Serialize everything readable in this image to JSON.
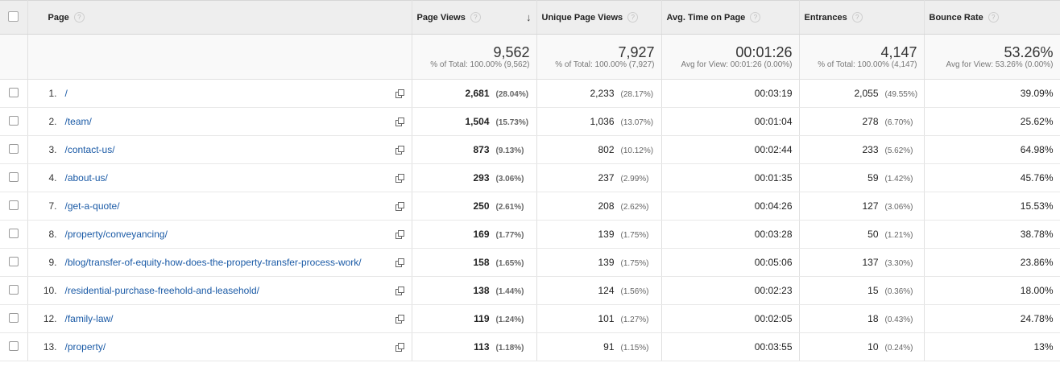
{
  "columns": {
    "page": "Page",
    "page_views": "Page Views",
    "unique_page_views": "Unique Page Views",
    "avg_time": "Avg. Time on Page",
    "entrances": "Entrances",
    "bounce_rate": "Bounce Rate",
    "help": "?",
    "sort_arrow": "↓"
  },
  "totals": {
    "page_views": "9,562",
    "page_views_sub": "% of Total: 100.00% (9,562)",
    "unique_page_views": "7,927",
    "unique_page_views_sub": "% of Total: 100.00% (7,927)",
    "avg_time": "00:01:26",
    "avg_time_sub": "Avg for View: 00:01:26 (0.00%)",
    "entrances": "4,147",
    "entrances_sub": "% of Total: 100.00% (4,147)",
    "bounce_rate": "53.26%",
    "bounce_rate_sub": "Avg for View: 53.26% (0.00%)"
  },
  "rows": [
    {
      "idx": "1.",
      "path": "/",
      "pv": "2,681",
      "pv_pct": "(28.04%)",
      "upv": "2,233",
      "upv_pct": "(28.17%)",
      "time": "00:03:19",
      "ent": "2,055",
      "ent_pct": "(49.55%)",
      "bounce": "39.09%"
    },
    {
      "idx": "2.",
      "path": "/team/",
      "pv": "1,504",
      "pv_pct": "(15.73%)",
      "upv": "1,036",
      "upv_pct": "(13.07%)",
      "time": "00:01:04",
      "ent": "278",
      "ent_pct": "(6.70%)",
      "bounce": "25.62%"
    },
    {
      "idx": "3.",
      "path": "/contact-us/",
      "pv": "873",
      "pv_pct": "(9.13%)",
      "upv": "802",
      "upv_pct": "(10.12%)",
      "time": "00:02:44",
      "ent": "233",
      "ent_pct": "(5.62%)",
      "bounce": "64.98%"
    },
    {
      "idx": "4.",
      "path": "/about-us/",
      "pv": "293",
      "pv_pct": "(3.06%)",
      "upv": "237",
      "upv_pct": "(2.99%)",
      "time": "00:01:35",
      "ent": "59",
      "ent_pct": "(1.42%)",
      "bounce": "45.76%"
    },
    {
      "idx": "7.",
      "path": "/get-a-quote/",
      "pv": "250",
      "pv_pct": "(2.61%)",
      "upv": "208",
      "upv_pct": "(2.62%)",
      "time": "00:04:26",
      "ent": "127",
      "ent_pct": "(3.06%)",
      "bounce": "15.53%"
    },
    {
      "idx": "8.",
      "path": "/property/conveyancing/",
      "pv": "169",
      "pv_pct": "(1.77%)",
      "upv": "139",
      "upv_pct": "(1.75%)",
      "time": "00:03:28",
      "ent": "50",
      "ent_pct": "(1.21%)",
      "bounce": "38.78%"
    },
    {
      "idx": "9.",
      "path": "/blog/transfer-of-equity-how-does-the-property-transfer-process-work/",
      "pv": "158",
      "pv_pct": "(1.65%)",
      "upv": "139",
      "upv_pct": "(1.75%)",
      "time": "00:05:06",
      "ent": "137",
      "ent_pct": "(3.30%)",
      "bounce": "23.86%"
    },
    {
      "idx": "10.",
      "path": "/residential-purchase-freehold-and-leasehold/",
      "pv": "138",
      "pv_pct": "(1.44%)",
      "upv": "124",
      "upv_pct": "(1.56%)",
      "time": "00:02:23",
      "ent": "15",
      "ent_pct": "(0.36%)",
      "bounce": "18.00%"
    },
    {
      "idx": "12.",
      "path": "/family-law/",
      "pv": "119",
      "pv_pct": "(1.24%)",
      "upv": "101",
      "upv_pct": "(1.27%)",
      "time": "00:02:05",
      "ent": "18",
      "ent_pct": "(0.43%)",
      "bounce": "24.78%"
    },
    {
      "idx": "13.",
      "path": "/property/",
      "pv": "113",
      "pv_pct": "(1.18%)",
      "upv": "91",
      "upv_pct": "(1.15%)",
      "time": "00:03:55",
      "ent": "10",
      "ent_pct": "(0.24%)",
      "bounce": "13%"
    }
  ]
}
